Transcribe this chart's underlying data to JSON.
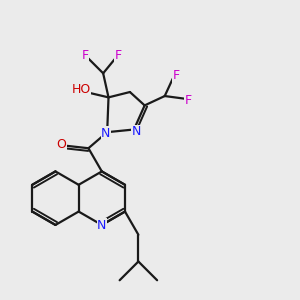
{
  "background_color": "#ebebeb",
  "atom_colors": {
    "N": "#1a1aff",
    "O": "#cc0000",
    "F": "#cc00cc",
    "H": "#000000"
  },
  "bond_color": "#1a1a1a",
  "figsize": [
    3.0,
    3.0
  ],
  "dpi": 100,
  "scale": 1.0
}
